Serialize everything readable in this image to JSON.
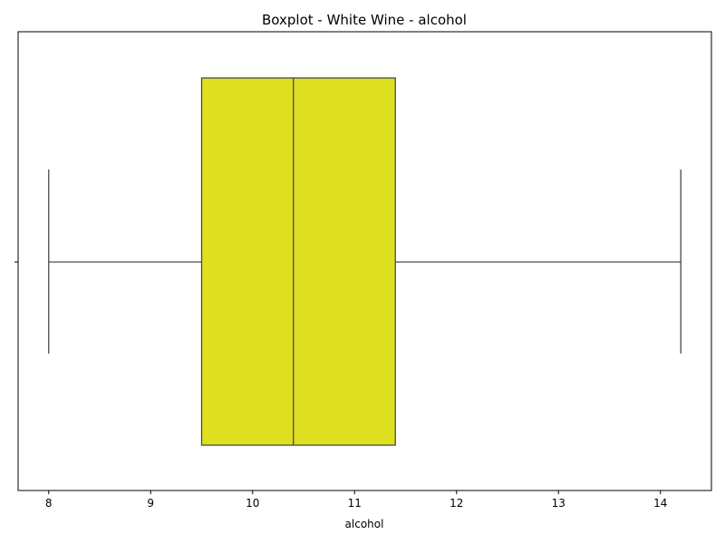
{
  "chart_data": {
    "type": "boxplot",
    "title": "Boxplot - White Wine - alcohol",
    "xlabel": "alcohol",
    "ylabel": "",
    "orientation": "horizontal",
    "xlim": [
      7.7,
      14.5
    ],
    "xticks": [
      8,
      9,
      10,
      11,
      12,
      13,
      14
    ],
    "grid": false,
    "box": {
      "whisker_low": 8.0,
      "q1": 9.5,
      "median": 10.4,
      "q3": 11.4,
      "whisker_high": 14.2
    },
    "colors": {
      "box_fill": "#dfe01f",
      "line": "#4a4a4a"
    }
  }
}
